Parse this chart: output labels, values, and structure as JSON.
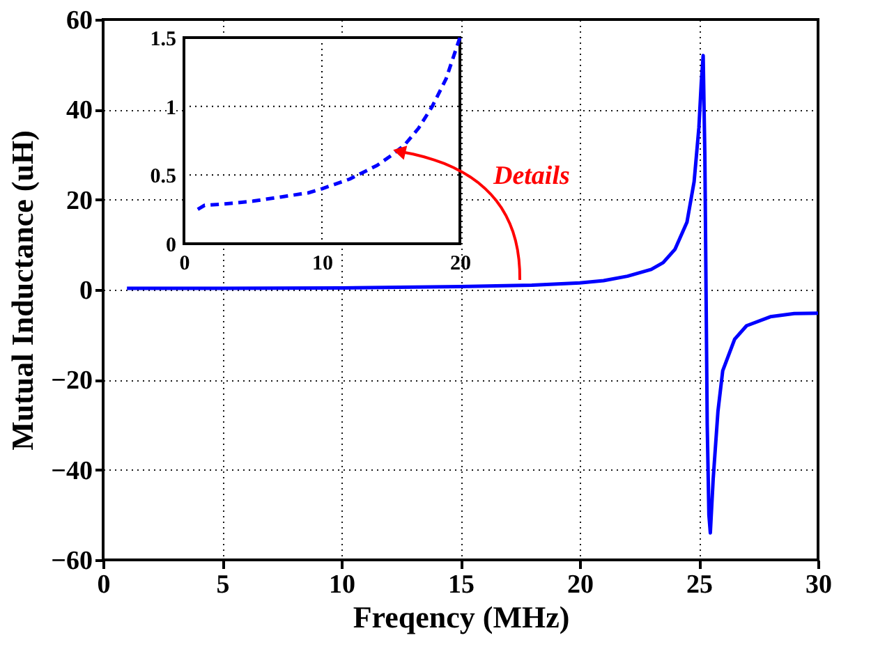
{
  "chart_data": [
    {
      "type": "line",
      "xlabel": "Freqency (MHz)",
      "ylabel": "Mutual Inductance (uH)",
      "xlim": [
        0,
        30
      ],
      "ylim": [
        -60,
        60
      ],
      "xticks": [
        0,
        5,
        10,
        15,
        20,
        25,
        30
      ],
      "yticks": [
        -60,
        -40,
        -20,
        0,
        20,
        40,
        60
      ],
      "grid": true,
      "line_style": "solid",
      "annotations": [
        "Details"
      ],
      "series": [
        {
          "color": "#0000ff",
          "x": [
            1,
            5,
            10,
            15,
            18,
            20,
            21,
            22,
            23,
            23.5,
            24,
            24.5,
            24.8,
            25,
            25.1,
            25.18,
            25.25,
            25.3,
            25.35,
            25.42,
            25.48,
            25.6,
            25.8,
            26,
            26.5,
            27,
            28,
            29,
            30
          ],
          "values": [
            0.3,
            0.3,
            0.4,
            0.7,
            1,
            1.5,
            2,
            3,
            4.5,
            6,
            9,
            15,
            24,
            36,
            46,
            52,
            30,
            0,
            -30,
            -50,
            -54,
            -42,
            -27,
            -18,
            -11,
            -8,
            -6,
            -5.3,
            -5.2
          ]
        }
      ]
    },
    {
      "type": "line",
      "xlim": [
        0,
        20
      ],
      "ylim": [
        0,
        1.5
      ],
      "xticks": [
        0,
        10,
        20
      ],
      "yticks": [
        0,
        0.5,
        1,
        1.5
      ],
      "grid": true,
      "line_style": "dashed",
      "series": [
        {
          "color": "#0000ff",
          "x": [
            1,
            1.5,
            3,
            5,
            7,
            9,
            10,
            12,
            14,
            15,
            16,
            17,
            18,
            19,
            20
          ],
          "values": [
            0.25,
            0.28,
            0.29,
            0.31,
            0.34,
            0.37,
            0.4,
            0.47,
            0.57,
            0.64,
            0.72,
            0.84,
            1.0,
            1.2,
            1.5
          ]
        }
      ]
    }
  ]
}
